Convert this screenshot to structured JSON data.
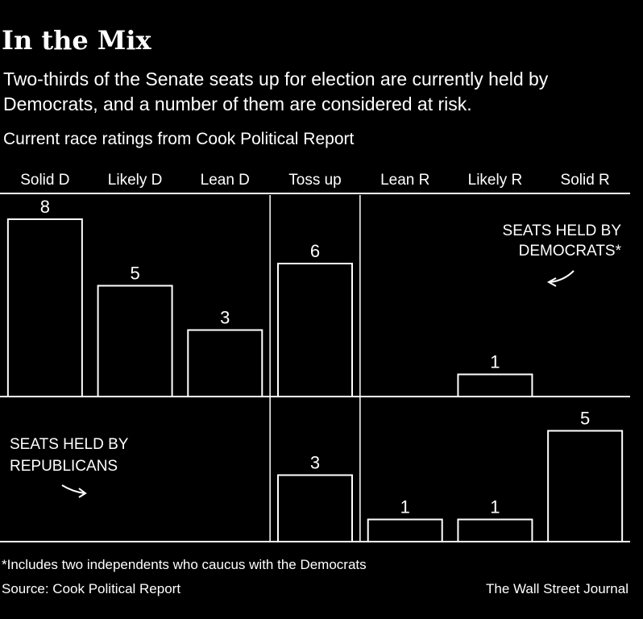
{
  "header": {
    "title": "In the Mix",
    "subtitle": "Two-thirds of the Senate seats up for election are currently held by Democrats, and a number of them are considered at risk.",
    "chart_label": "Current race ratings from Cook Political Report"
  },
  "footer": {
    "note": "*Includes two independents who caucus with the Democrats",
    "source": "Source: Cook Political Report",
    "credit": "The Wall Street Journal"
  },
  "colors": {
    "background": "#000000",
    "foreground": "#ffffff"
  },
  "chart_data": {
    "type": "bar",
    "categories": [
      "Solid D",
      "Likely D",
      "Lean D",
      "Toss up",
      "Lean R",
      "Likely R",
      "Solid R"
    ],
    "ylim": [
      0,
      8
    ],
    "grid": false,
    "series": [
      {
        "name": "SEATS HELD BY DEMOCRATS*",
        "values": [
          8,
          5,
          3,
          6,
          0,
          1,
          0
        ]
      },
      {
        "name": "SEATS HELD BY REPUBLICANS",
        "values": [
          0,
          0,
          0,
          3,
          1,
          1,
          5
        ]
      }
    ]
  }
}
